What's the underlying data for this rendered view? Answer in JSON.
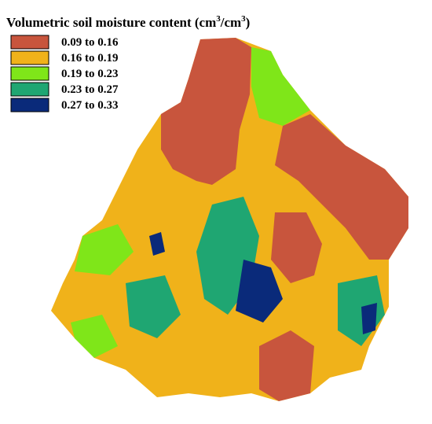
{
  "title": {
    "parts": [
      "Volumetric soil moisture content (cm",
      "3",
      "/cm",
      "3",
      ")"
    ]
  },
  "legend": {
    "items": [
      {
        "label": "0.09 to 0.16",
        "color": "#c8553d"
      },
      {
        "label": "0.16 to 0.19",
        "color": "#f0b21a"
      },
      {
        "label": "0.19 to 0.23",
        "color": "#7fe619"
      },
      {
        "label": "0.23 to 0.27",
        "color": "#1fa672"
      },
      {
        "label": "0.27 to 0.33",
        "color": "#0a2a7a"
      }
    ]
  }
}
